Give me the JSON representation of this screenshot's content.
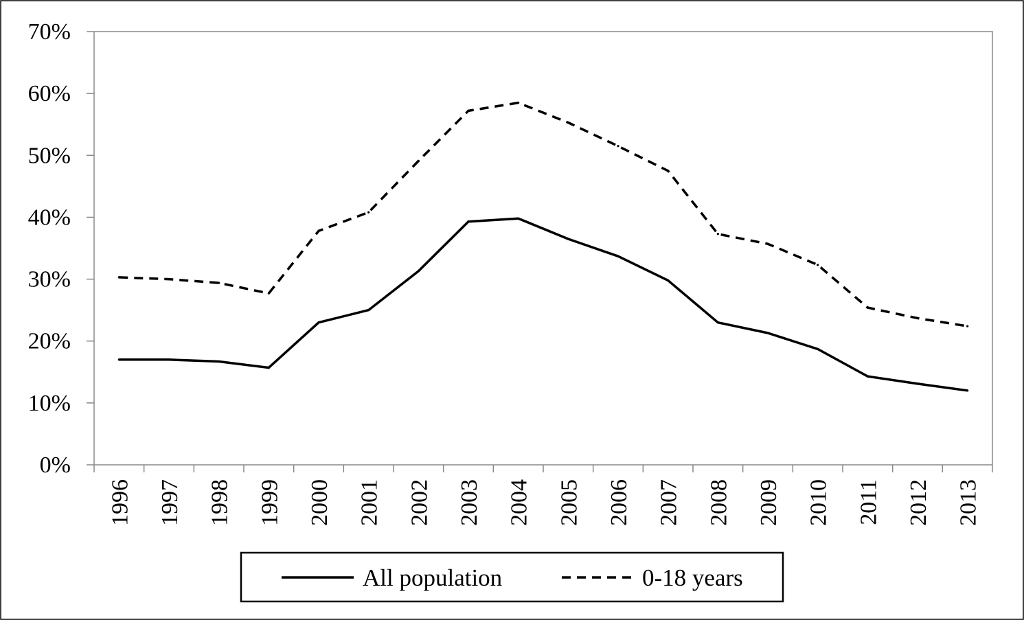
{
  "chart_data": {
    "type": "line",
    "categories": [
      "1996",
      "1997",
      "1998",
      "1999",
      "2000",
      "2001",
      "2002",
      "2003",
      "2004",
      "2005",
      "2006",
      "2007",
      "2008",
      "2009",
      "2010",
      "2011",
      "2012",
      "2013"
    ],
    "series": [
      {
        "name": "All population",
        "style": "solid",
        "values": [
          17.0,
          17.0,
          16.7,
          15.7,
          23.0,
          25.0,
          31.3,
          39.3,
          39.8,
          36.5,
          33.7,
          29.8,
          23.0,
          21.3,
          18.7,
          14.3,
          13.1,
          12.0
        ]
      },
      {
        "name": "0-18 years",
        "style": "dashed",
        "values": [
          30.3,
          30.0,
          29.4,
          27.7,
          37.8,
          40.8,
          49.1,
          57.2,
          58.5,
          55.3,
          51.5,
          47.5,
          37.3,
          35.7,
          32.3,
          25.4,
          23.7,
          22.4
        ]
      }
    ],
    "yticks": [
      "0%",
      "10%",
      "20%",
      "30%",
      "40%",
      "50%",
      "60%",
      "70%"
    ],
    "ylim": [
      0,
      70
    ],
    "title": "",
    "xlabel": "",
    "ylabel": "",
    "grid": false,
    "legend_position": "bottom"
  }
}
